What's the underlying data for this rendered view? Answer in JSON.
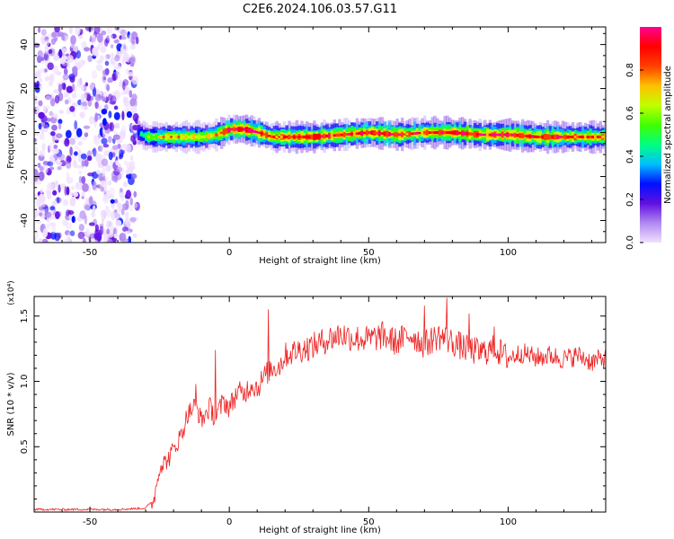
{
  "figure_title": "C2E6.2024.106.03.57.G11",
  "chart_data": [
    {
      "type": "heatmap",
      "name": "spectrogram",
      "xlabel": "Height of straight line (km)",
      "ylabel": "Frequency (Hz)",
      "xlim": [
        -70,
        135
      ],
      "ylim": [
        -50,
        48
      ],
      "xticks": [
        -50,
        0,
        50,
        100
      ],
      "yticks": [
        -40,
        -20,
        0,
        20,
        40
      ],
      "colorbar": {
        "label": "Normalized spectral amplitude",
        "range": [
          0,
          1
        ],
        "ticks": [
          0.0,
          0.2,
          0.4,
          0.6,
          0.8
        ],
        "colormap": [
          "#f0e0ff",
          "#b088f0",
          "#6010e0",
          "#0010ff",
          "#00c0ff",
          "#00ff80",
          "#40ff00",
          "#c0ff00",
          "#ffc000",
          "#ff4000",
          "#ff0000",
          "#ff0090"
        ]
      },
      "noise_region_x": [
        -70,
        -33
      ],
      "signal_ridge": [
        {
          "x": -33,
          "freq": 0,
          "amp": 0.3
        },
        {
          "x": -30,
          "freq": -2,
          "amp": 0.55
        },
        {
          "x": -20,
          "freq": -2,
          "amp": 0.7
        },
        {
          "x": -10,
          "freq": -2,
          "amp": 0.65
        },
        {
          "x": -5,
          "freq": -1,
          "amp": 0.7
        },
        {
          "x": 0,
          "freq": 1.5,
          "amp": 0.85
        },
        {
          "x": 5,
          "freq": 1.5,
          "amp": 0.9
        },
        {
          "x": 10,
          "freq": 0,
          "amp": 0.8
        },
        {
          "x": 15,
          "freq": -2,
          "amp": 0.75
        },
        {
          "x": 30,
          "freq": -2,
          "amp": 0.85
        },
        {
          "x": 40,
          "freq": -1,
          "amp": 0.8
        },
        {
          "x": 50,
          "freq": 0,
          "amp": 0.85
        },
        {
          "x": 60,
          "freq": -1,
          "amp": 0.8
        },
        {
          "x": 70,
          "freq": 0,
          "amp": 0.8
        },
        {
          "x": 80,
          "freq": 0,
          "amp": 0.85
        },
        {
          "x": 90,
          "freq": -1,
          "amp": 0.8
        },
        {
          "x": 100,
          "freq": -1,
          "amp": 0.85
        },
        {
          "x": 110,
          "freq": -2,
          "amp": 0.8
        },
        {
          "x": 120,
          "freq": -2,
          "amp": 0.8
        },
        {
          "x": 135,
          "freq": -2,
          "amp": 0.75
        }
      ]
    },
    {
      "type": "line",
      "name": "snr",
      "xlabel": "Height of straight line (km)",
      "ylabel": "SNR (10 * v/v)",
      "y_multiplier": "(x10⁴)",
      "xlim": [
        -70,
        135
      ],
      "ylim": [
        0,
        1.65
      ],
      "xticks": [
        -50,
        0,
        50,
        100
      ],
      "yticks": [
        0.5,
        1.0,
        1.5
      ],
      "ytick_labels": [
        "0.5",
        "1.0",
        "1.5"
      ],
      "color": "#ee2222",
      "series": [
        {
          "x": [
            -70,
            -60,
            -50,
            -40,
            -30,
            -27,
            -25,
            -22,
            -20,
            -17,
            -15,
            -12,
            -10,
            -7,
            -5,
            -2,
            0,
            3,
            5,
            8,
            10,
            13,
            15,
            18,
            20,
            25,
            30,
            35,
            40,
            45,
            50,
            55,
            60,
            65,
            70,
            75,
            80,
            85,
            90,
            95,
            100,
            105,
            110,
            115,
            120,
            125,
            130,
            135
          ],
          "y": [
            0.02,
            0.02,
            0.02,
            0.02,
            0.03,
            0.1,
            0.35,
            0.4,
            0.48,
            0.6,
            0.75,
            0.82,
            0.7,
            0.8,
            0.72,
            0.85,
            0.8,
            0.92,
            0.9,
            0.98,
            0.95,
            1.05,
            1.1,
            1.12,
            1.2,
            1.24,
            1.27,
            1.32,
            1.36,
            1.33,
            1.32,
            1.35,
            1.3,
            1.36,
            1.28,
            1.35,
            1.3,
            1.25,
            1.22,
            1.25,
            1.18,
            1.22,
            1.18,
            1.2,
            1.17,
            1.2,
            1.15,
            1.18
          ]
        }
      ],
      "spikes": [
        {
          "x": -12,
          "y": 0.98
        },
        {
          "x": -5,
          "y": 1.24
        },
        {
          "x": 14,
          "y": 1.55
        },
        {
          "x": 70,
          "y": 1.58
        },
        {
          "x": 78,
          "y": 1.64
        },
        {
          "x": 86,
          "y": 1.52
        },
        {
          "x": 95,
          "y": 1.42
        }
      ]
    }
  ]
}
